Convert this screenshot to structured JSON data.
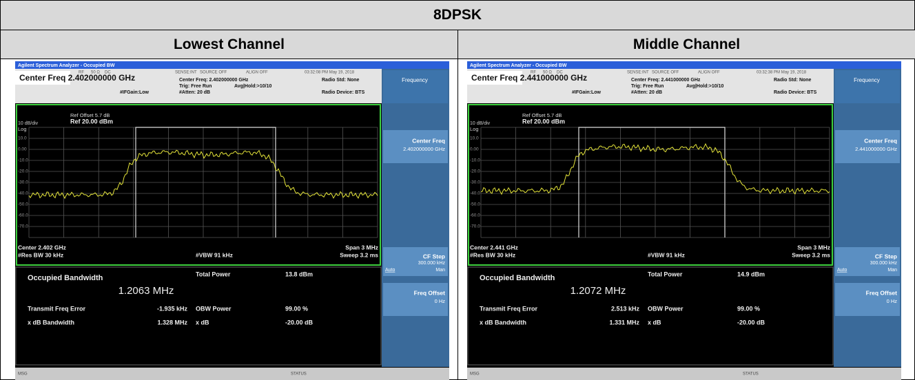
{
  "table": {
    "title": "8DPSK",
    "panels": [
      {
        "heading": "Lowest Channel",
        "screen": {
          "app_title": "Agilent Spectrum Analyzer - Occupied BW",
          "center_freq_title": "Center Freq 2.402000000 GHz",
          "status": {
            "rf": "RF",
            "impedance": "50 Ω",
            "coupling": "DC",
            "sense": "SENSE:INT",
            "source": "SOURCE OFF",
            "align": "ALIGN OFF",
            "timestamp": "03:32:08 PM May 19, 2018"
          },
          "settings": {
            "center_freq": "Center Freq: 2.402000000 GHz",
            "trig": "Trig: Free Run",
            "avg": "Avg|Hold:>10/10",
            "if_gain": "#IFGain:Low",
            "atten": "#Atten: 20 dB",
            "radio_std": "Radio Std: None",
            "radio_device": "Radio Device: BTS"
          },
          "graph": {
            "ref_offset": "Ref Offset 5.7 dB",
            "scale": "10 dB/div",
            "ref_level": "Ref 20.00 dBm",
            "log": "Log",
            "y_labels": [
              "10.0",
              "0.00",
              "-10.0",
              "-20.0",
              "-30.0",
              "-40.0",
              "-50.0",
              "-60.0",
              "-70.0"
            ],
            "center": "Center 2.402 GHz",
            "res_bw": "#Res BW 30 kHz",
            "vbw": "#VBW 91 kHz",
            "span": "Span 3 MHz",
            "sweep": "Sweep 3.2 ms"
          },
          "results": {
            "occupied_bw_label": "Occupied Bandwidth",
            "occupied_bw": "1.2063 MHz",
            "total_power_label": "Total Power",
            "total_power": "13.8 dBm",
            "freq_error_label": "Transmit Freq Error",
            "freq_error": "-1.935 kHz",
            "obw_power_label": "OBW Power",
            "obw_power": "99.00 %",
            "xdb_bw_label": "x dB Bandwidth",
            "xdb_bw": "1.328 MHz",
            "xdb_label": "x dB",
            "xdb": "-20.00 dB"
          },
          "softkeys": {
            "menu": "Frequency",
            "center_freq": "Center Freq",
            "center_freq_value": "2.402000000 GHz",
            "cf_step": "CF Step",
            "cf_step_value": "300.000 kHz",
            "auto": "Auto",
            "man": "Man",
            "freq_offset": "Freq Offset",
            "freq_offset_value": "0 Hz"
          },
          "status_bar": {
            "msg": "MSG",
            "status": "STATUS"
          }
        }
      },
      {
        "heading": "Middle Channel",
        "screen": {
          "app_title": "Agilent Spectrum Analyzer - Occupied BW",
          "center_freq_title": "Center Freq 2.441000000 GHz",
          "status": {
            "rf": "RF",
            "impedance": "50 Ω",
            "coupling": "DC",
            "sense": "SENSE:INT",
            "source": "SOURCE OFF",
            "align": "ALIGN OFF",
            "timestamp": "03:32:38 PM May 19, 2018"
          },
          "settings": {
            "center_freq": "Center Freq: 2.441000000 GHz",
            "trig": "Trig: Free Run",
            "avg": "Avg|Hold:>10/10",
            "if_gain": "#IFGain:Low",
            "atten": "#Atten: 20 dB",
            "radio_std": "Radio Std: None",
            "radio_device": "Radio Device: BTS"
          },
          "graph": {
            "ref_offset": "Ref Offset 5.7 dB",
            "scale": "10 dB/div",
            "ref_level": "Ref 20.00 dBm",
            "log": "Log",
            "y_labels": [
              "10.0",
              "0.00",
              "-10.0",
              "-20.0",
              "-30.0",
              "-40.0",
              "-50.0",
              "-60.0",
              "-70.0"
            ],
            "center": "Center 2.441 GHz",
            "res_bw": "#Res BW 30 kHz",
            "vbw": "#VBW 91 kHz",
            "span": "Span 3 MHz",
            "sweep": "Sweep 3.2 ms"
          },
          "results": {
            "occupied_bw_label": "Occupied Bandwidth",
            "occupied_bw": "1.2072 MHz",
            "total_power_label": "Total Power",
            "total_power": "14.9 dBm",
            "freq_error_label": "Transmit Freq Error",
            "freq_error": "2.513 kHz",
            "obw_power_label": "OBW Power",
            "obw_power": "99.00 %",
            "xdb_bw_label": "x dB Bandwidth",
            "xdb_bw": "1.331 MHz",
            "xdb_label": "x dB",
            "xdb": "-20.00 dB"
          },
          "softkeys": {
            "menu": "Frequency",
            "center_freq": "Center Freq",
            "center_freq_value": "2.441000000 GHz",
            "cf_step": "CF Step",
            "cf_step_value": "300.000 kHz",
            "auto": "Auto",
            "man": "Man",
            "freq_offset": "Freq Offset",
            "freq_offset_value": "0 Hz"
          },
          "status_bar": {
            "msg": "MSG",
            "status": "STATUS"
          }
        }
      }
    ]
  }
}
